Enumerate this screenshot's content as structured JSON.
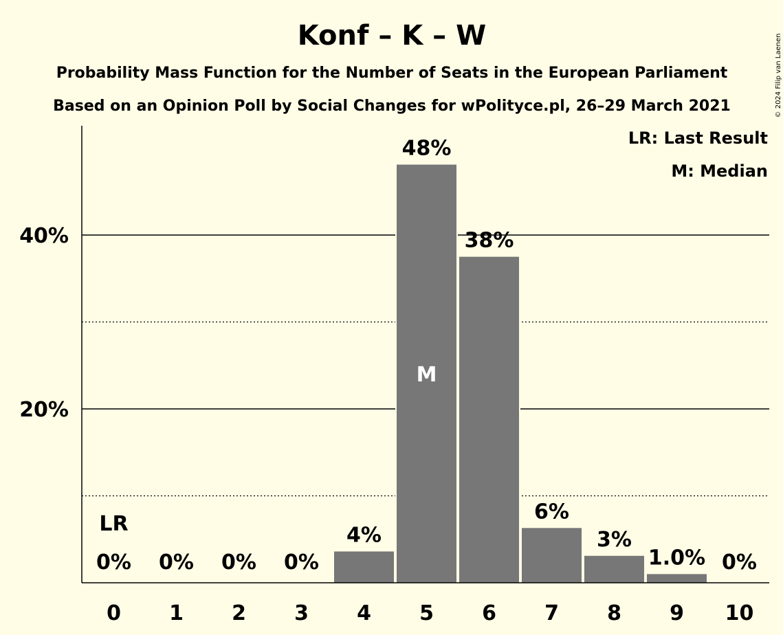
{
  "chart_data": {
    "type": "bar",
    "title": "Konf – K – W",
    "subtitle_1": "Probability Mass Function for the Number of Seats in the European Parliament",
    "subtitle_2": "Based on an Opinion Poll by Social Changes for wPolityce.pl, 26–29 March 2021",
    "categories": [
      "0",
      "1",
      "2",
      "3",
      "4",
      "5",
      "6",
      "7",
      "8",
      "9",
      "10"
    ],
    "values": [
      0,
      0,
      0,
      0,
      3.6,
      48.1,
      37.5,
      6.3,
      3.1,
      1.0,
      0
    ],
    "value_labels": [
      "0%",
      "0%",
      "0%",
      "0%",
      "4%",
      "48%",
      "38%",
      "6%",
      "3%",
      "1.0%",
      "0%"
    ],
    "ylim": [
      0,
      52
    ],
    "yticks_major": [
      20,
      40
    ],
    "yticks_major_labels": [
      "20%",
      "40%"
    ],
    "yticks_minor": [
      10,
      30
    ],
    "last_result_index": 0,
    "last_result_label": "LR",
    "median_index": 5,
    "median_label": "M",
    "legend": [
      "LR: Last Result",
      "M: Median"
    ],
    "legend_position": "top-right",
    "bar_color": "#777777",
    "background": "#FFFDE6",
    "copyright": "© 2024 Filip van Laenen"
  }
}
